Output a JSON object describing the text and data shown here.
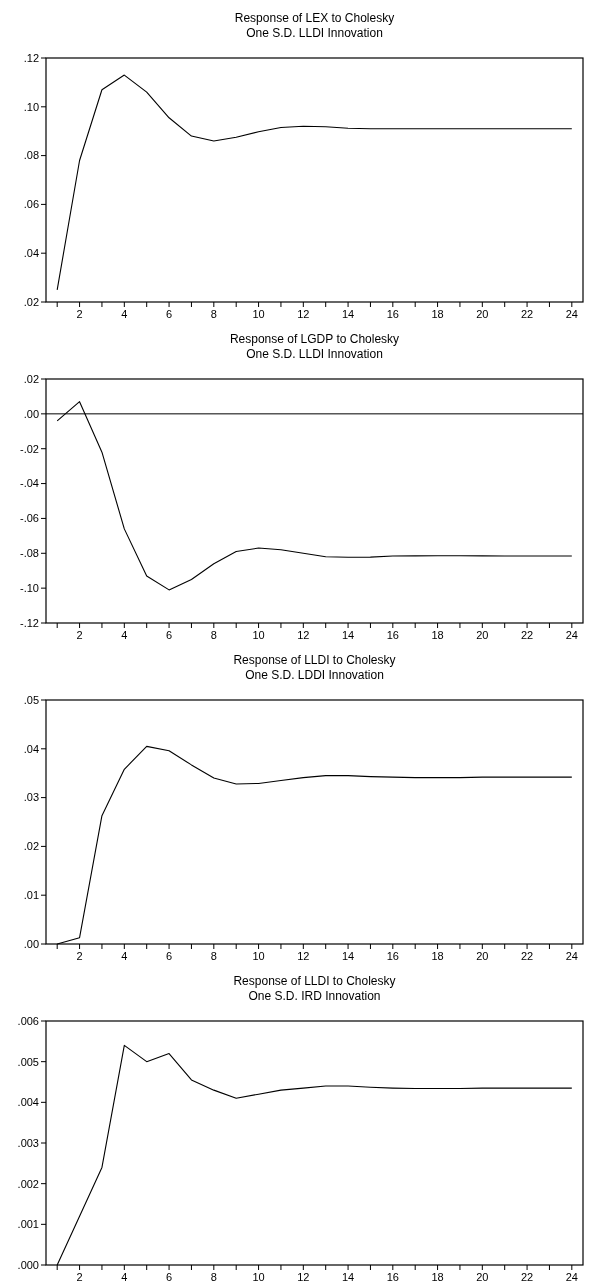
{
  "chart_data": [
    {
      "type": "line",
      "title": "Response of LEX to Cholesky",
      "subtitle": "One S.D. LLDI Innovation",
      "x": [
        1,
        2,
        3,
        4,
        5,
        6,
        7,
        8,
        9,
        10,
        11,
        12,
        13,
        14,
        15,
        16,
        17,
        18,
        19,
        20,
        21,
        22,
        23,
        24
      ],
      "series": [
        {
          "color": "#000000",
          "values": [
            0.025,
            0.078,
            0.107,
            0.113,
            0.106,
            0.0955,
            0.088,
            0.086,
            0.0875,
            0.0898,
            0.0915,
            0.092,
            0.0918,
            0.0912,
            0.091,
            0.091,
            0.091,
            0.091,
            0.091,
            0.091,
            0.091,
            0.091,
            0.091,
            0.091
          ]
        }
      ],
      "xlim": [
        0.5,
        24.5
      ],
      "xticks": [
        {
          "value": 1,
          "label": null
        },
        2,
        {
          "value": 3,
          "label": null
        },
        4,
        {
          "value": 5,
          "label": null
        },
        6,
        {
          "value": 7,
          "label": null
        },
        8,
        {
          "value": 9,
          "label": null
        },
        10,
        {
          "value": 11,
          "label": null
        },
        12,
        {
          "value": 13,
          "label": null
        },
        14,
        {
          "value": 15,
          "label": null
        },
        16,
        {
          "value": 17,
          "label": null
        },
        18,
        {
          "value": 19,
          "label": null
        },
        20,
        {
          "value": 21,
          "label": null
        },
        22,
        {
          "value": 23,
          "label": null
        },
        24
      ],
      "ylim": [
        0.02,
        0.12
      ],
      "yticks": [
        {
          "value": 0.02,
          "label": ".02"
        },
        {
          "value": 0.04,
          "label": ".04"
        },
        {
          "value": 0.06,
          "label": ".06"
        },
        {
          "value": 0.08,
          "label": ".08"
        },
        {
          "value": 0.1,
          "label": ".10"
        },
        {
          "value": 0.12,
          "label": ".12"
        }
      ],
      "grid": false
    },
    {
      "type": "line",
      "title": "Response of LGDP to Cholesky",
      "subtitle": "One S.D. LLDI Innovation",
      "x": [
        1,
        2,
        3,
        4,
        5,
        6,
        7,
        8,
        9,
        10,
        11,
        12,
        13,
        14,
        15,
        16,
        17,
        18,
        19,
        20,
        21,
        22,
        23,
        24
      ],
      "series": [
        {
          "color": "#000000",
          "values": [
            -0.004,
            0.007,
            -0.022,
            -0.066,
            -0.093,
            -0.101,
            -0.095,
            -0.086,
            -0.079,
            -0.077,
            -0.078,
            -0.08,
            -0.082,
            -0.0823,
            -0.0822,
            -0.0816,
            -0.0815,
            -0.0814,
            -0.0814,
            -0.0815,
            -0.0816,
            -0.0816,
            -0.0816,
            -0.0816
          ]
        }
      ],
      "xlim": [
        0.5,
        24.5
      ],
      "xticks": [
        {
          "value": 1,
          "label": null
        },
        2,
        {
          "value": 3,
          "label": null
        },
        4,
        {
          "value": 5,
          "label": null
        },
        6,
        {
          "value": 7,
          "label": null
        },
        8,
        {
          "value": 9,
          "label": null
        },
        10,
        {
          "value": 11,
          "label": null
        },
        12,
        {
          "value": 13,
          "label": null
        },
        14,
        {
          "value": 15,
          "label": null
        },
        16,
        {
          "value": 17,
          "label": null
        },
        18,
        {
          "value": 19,
          "label": null
        },
        20,
        {
          "value": 21,
          "label": null
        },
        22,
        {
          "value": 23,
          "label": null
        },
        24
      ],
      "ylim": [
        -0.12,
        0.02
      ],
      "yticks": [
        {
          "value": -0.12,
          "label": "-.12"
        },
        {
          "value": -0.1,
          "label": "-.10"
        },
        {
          "value": -0.08,
          "label": "-.08"
        },
        {
          "value": -0.06,
          "label": "-.06"
        },
        {
          "value": -0.04,
          "label": "-.04"
        },
        {
          "value": -0.02,
          "label": "-.02"
        },
        {
          "value": 0,
          "label": ".00"
        },
        {
          "value": 0.02,
          "label": ".02"
        }
      ],
      "ref_lines": [
        {
          "axis": "y",
          "value": 0,
          "color": "#000000"
        }
      ],
      "grid": false
    },
    {
      "type": "line",
      "title": "Response of LLDI to Cholesky",
      "subtitle": "One S.D. LDDI Innovation",
      "x": [
        1,
        2,
        3,
        4,
        5,
        6,
        7,
        8,
        9,
        10,
        11,
        12,
        13,
        14,
        15,
        16,
        17,
        18,
        19,
        20,
        21,
        22,
        23,
        24
      ],
      "series": [
        {
          "color": "#000000",
          "values": [
            0.0,
            0.0013,
            0.0263,
            0.0358,
            0.0405,
            0.0396,
            0.0367,
            0.034,
            0.0328,
            0.0329,
            0.0335,
            0.0341,
            0.0345,
            0.0345,
            0.0343,
            0.0342,
            0.0341,
            0.0341,
            0.0341,
            0.0342,
            0.0342,
            0.0342,
            0.0342,
            0.0342
          ]
        }
      ],
      "xlim": [
        0.5,
        24.5
      ],
      "xticks": [
        {
          "value": 1,
          "label": null
        },
        2,
        {
          "value": 3,
          "label": null
        },
        4,
        {
          "value": 5,
          "label": null
        },
        6,
        {
          "value": 7,
          "label": null
        },
        8,
        {
          "value": 9,
          "label": null
        },
        10,
        {
          "value": 11,
          "label": null
        },
        12,
        {
          "value": 13,
          "label": null
        },
        14,
        {
          "value": 15,
          "label": null
        },
        16,
        {
          "value": 17,
          "label": null
        },
        18,
        {
          "value": 19,
          "label": null
        },
        20,
        {
          "value": 21,
          "label": null
        },
        22,
        {
          "value": 23,
          "label": null
        },
        24
      ],
      "ylim": [
        0,
        0.05
      ],
      "yticks": [
        {
          "value": 0,
          "label": ".00"
        },
        {
          "value": 0.01,
          "label": ".01"
        },
        {
          "value": 0.02,
          "label": ".02"
        },
        {
          "value": 0.03,
          "label": ".03"
        },
        {
          "value": 0.04,
          "label": ".04"
        },
        {
          "value": 0.05,
          "label": ".05"
        }
      ],
      "grid": false
    },
    {
      "type": "line",
      "title": "Response of LLDI to Cholesky",
      "subtitle": "One S.D. IRD Innovation",
      "x": [
        1,
        2,
        3,
        4,
        5,
        6,
        7,
        8,
        9,
        10,
        11,
        12,
        13,
        14,
        15,
        16,
        17,
        18,
        19,
        20,
        21,
        22,
        23,
        24
      ],
      "series": [
        {
          "color": "#000000",
          "values": [
            0.0,
            0.0012,
            0.0024,
            0.0054,
            0.005,
            0.0052,
            0.00455,
            0.0043,
            0.0041,
            0.0042,
            0.0043,
            0.00435,
            0.0044,
            0.0044,
            0.00437,
            0.00435,
            0.00434,
            0.00434,
            0.00434,
            0.00435,
            0.00435,
            0.00435,
            0.00435,
            0.00435
          ]
        }
      ],
      "xlim": [
        0.5,
        24.5
      ],
      "xticks": [
        {
          "value": 1,
          "label": null
        },
        2,
        {
          "value": 3,
          "label": null
        },
        4,
        {
          "value": 5,
          "label": null
        },
        6,
        {
          "value": 7,
          "label": null
        },
        8,
        {
          "value": 9,
          "label": null
        },
        10,
        {
          "value": 11,
          "label": null
        },
        12,
        {
          "value": 13,
          "label": null
        },
        14,
        {
          "value": 15,
          "label": null
        },
        16,
        {
          "value": 17,
          "label": null
        },
        18,
        {
          "value": 19,
          "label": null
        },
        20,
        {
          "value": 21,
          "label": null
        },
        22,
        {
          "value": 23,
          "label": null
        },
        24
      ],
      "ylim": [
        0,
        0.006
      ],
      "yticks": [
        {
          "value": 0,
          "label": ".000"
        },
        {
          "value": 0.001,
          "label": ".001"
        },
        {
          "value": 0.002,
          "label": ".002"
        },
        {
          "value": 0.003,
          "label": ".003"
        },
        {
          "value": 0.004,
          "label": ".004"
        },
        {
          "value": 0.005,
          "label": ".005"
        },
        {
          "value": 0.006,
          "label": ".006"
        }
      ],
      "grid": false
    }
  ]
}
